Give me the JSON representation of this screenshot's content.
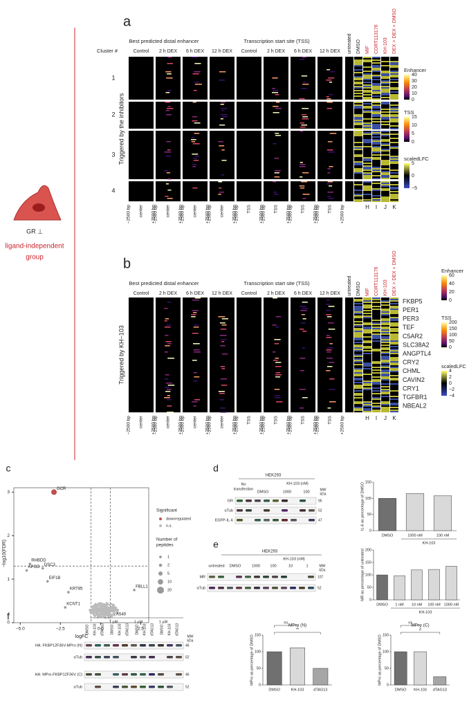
{
  "panel_a": {
    "label": "a",
    "cluster_header": "Cluster #",
    "group_headers": [
      "Best predicted distal enhancer",
      "Transcription start site (TSS)"
    ],
    "columns": [
      "Control",
      "2 h DEX",
      "6 h DEX",
      "12 h DEX",
      "Control",
      "2 h DEX",
      "6 h DEX",
      "12 h DEX"
    ],
    "side_columns": [
      "untreated",
      "DMSO",
      "MIF",
      "CORT113176",
      "KH-103",
      "DEX > DEX + DMSO"
    ],
    "side_letters": [
      "H",
      "I",
      "J",
      "K"
    ],
    "clusters": [
      "1",
      "2",
      "3",
      "4"
    ],
    "row_label": "Triggered by the inhibitors",
    "enhancer_ticks": [
      "−2500 bp",
      "center",
      "+2500 bp"
    ],
    "tss_ticks": [
      "−2500 bp",
      "TSS",
      "+2500 bp"
    ],
    "legends": [
      {
        "title": "Enhancer",
        "ticks": [
          "40",
          "30",
          "20",
          "10",
          "0"
        ]
      },
      {
        "title": "TSS",
        "ticks": [
          "15",
          "10",
          "5",
          "0"
        ]
      },
      {
        "title": "scaledLFC",
        "ticks": [
          "5",
          "0",
          "−5"
        ]
      }
    ]
  },
  "panel_b": {
    "label": "b",
    "group_headers": [
      "Best predicted distal enhancer",
      "Transcription start site (TSS)"
    ],
    "columns": [
      "Control",
      "2 h DEX",
      "6 h DEX",
      "12 h DEX",
      "Control",
      "2 h DEX",
      "6 h DEX",
      "12 h DEX"
    ],
    "side_columns": [
      "untreated",
      "DMSO",
      "MIF",
      "CORT113176",
      "KH-103",
      "DEX > DEX + DMSO"
    ],
    "side_letters": [
      "H",
      "I",
      "J",
      "K"
    ],
    "row_label": "Triggered by KH−103",
    "genes": [
      "FKBP5",
      "PER1",
      "PER3",
      "TEF",
      "C5AR2",
      "SLC38A2",
      "ANGPTL4",
      "CRY2",
      "CHML",
      "CAVIN2",
      "CRY1",
      "TGFBR1",
      "NBEAL2"
    ],
    "enhancer_ticks": [
      "−2500 bp",
      "center",
      "+2500 bp"
    ],
    "tss_ticks": [
      "−2500 bp",
      "TSS",
      "+2500 bp"
    ],
    "legends": [
      {
        "title": "Enhancer",
        "ticks": [
          "60",
          "40",
          "20",
          "0"
        ]
      },
      {
        "title": "TSS",
        "ticks": [
          "200",
          "150",
          "100",
          "50",
          "0"
        ]
      },
      {
        "title": "scaledLFC",
        "ticks": [
          "4",
          "2",
          "0",
          "−2",
          "−4"
        ]
      }
    ]
  },
  "side": {
    "receptor": "GR ⊥",
    "group": [
      "ligand-independent",
      "group"
    ]
  },
  "panel_c": {
    "label": "c",
    "xlabel": "logFC",
    "ylabel": "−log10(FDR)",
    "xlim": [
      -5.4,
      3
    ],
    "ylim": [
      0,
      3.1
    ],
    "xticks": [
      {
        "value": -5,
        "label": "−5.0"
      },
      {
        "value": -2.5,
        "label": "−2.5"
      },
      {
        "value": 0,
        "label": "0.0"
      },
      {
        "value": 2.5,
        "label": "2.5"
      }
    ],
    "yticks": [
      0,
      1,
      2,
      3
    ],
    "vlines": [
      -0.6,
      0.6
    ],
    "hline": 1.3,
    "points": [
      {
        "label": "GCR",
        "x": -2.9,
        "y": 3.0
      },
      {
        "label": "RHBDD",
        "x": -4.4,
        "y": 1.35
      },
      {
        "label": "APOD",
        "x": -4.6,
        "y": 1.2
      },
      {
        "label": "DSC3",
        "x": -3.6,
        "y": 1.25
      },
      {
        "label": "EIF1B",
        "x": -3.3,
        "y": 0.95
      },
      {
        "label": "KRT85",
        "x": -2.0,
        "y": 0.7
      },
      {
        "label": "KCNT1",
        "x": -2.2,
        "y": 0.35
      },
      {
        "label": "FBLL1",
        "x": 2.1,
        "y": 0.75
      }
    ],
    "legend_title": "Significant",
    "legend_items": [
      "downregulated",
      "n.s."
    ],
    "size_title": [
      "Number of",
      "peptides"
    ],
    "sizes": [
      1,
      2,
      5,
      10,
      20
    ]
  },
  "panel_d": {
    "label": "d",
    "blot": {
      "cell": "HEK293",
      "treat": "KH-103  (nM)",
      "lanes": [
        "No",
        "transfection",
        "DMSO",
        "1000",
        "100"
      ],
      "mw": "MW",
      "kda": "kDa",
      "rows": [
        "GR",
        "αTub",
        "EGFP-IL-6"
      ],
      "mws": [
        "95",
        "52",
        "47"
      ]
    },
    "chart": {
      "ylabel": "IL-6 as percentage of DMSO",
      "categories": [
        "DMSO",
        "1000 nM",
        "100 nM"
      ],
      "values": [
        100,
        115,
        108
      ],
      "colors": [
        "#707070",
        "#d9d9d9",
        "#d9d9d9"
      ],
      "ylim": [
        0,
        150
      ],
      "yticks": [
        0,
        50,
        100,
        150
      ],
      "group": "KH-103"
    }
  },
  "panel_e": {
    "label": "e",
    "blot": {
      "cell": "HEK293",
      "treat": "KH-103  (nM)",
      "lanes": [
        "untreated",
        "DMSO",
        "1000",
        "100",
        "10",
        "1"
      ],
      "mw": "MW",
      "kda": "kDa",
      "rows": [
        "MR",
        "αTub"
      ],
      "mws": [
        "107",
        "52"
      ]
    },
    "chart": {
      "ylabel": "MR as percentage of untreated",
      "categories": [
        "DMSO",
        "1 nM",
        "10 nM",
        "100 nM",
        "1000 nM"
      ],
      "values": [
        100,
        97,
        120,
        122,
        135
      ],
      "colors": [
        "#707070",
        "#d9d9d9",
        "#d9d9d9",
        "#d9d9d9",
        "#d9d9d9"
      ],
      "ylim": [
        0,
        200
      ],
      "yticks": [
        0,
        50,
        100,
        150,
        200
      ],
      "group": "KH-103"
    }
  },
  "panel_f": {
    "label": "f",
    "blot": {
      "cell": "A549",
      "dose": "1 µM",
      "lanes": [
        "DMSO",
        "KH-103",
        "dTAG13"
      ],
      "mw": "MW",
      "kda": "kDa",
      "rows": [
        "HA: FKBP12F36V-MPro (N)",
        "αTub",
        "HA: MPro-FKBP12F36V (C)",
        "αTub"
      ],
      "mws": [
        "46",
        "52",
        "46",
        "52"
      ]
    },
    "charts": [
      {
        "title": "MPro (N)",
        "ylabel": "MPro as percentage of DMSO",
        "categories": [
          "DMSO",
          "KH-103",
          "dTAG13"
        ],
        "values": [
          100,
          112,
          50
        ],
        "colors": [
          "#707070",
          "#d9d9d9",
          "#a6a6a6"
        ],
        "ylim": [
          0,
          150
        ],
        "yticks": [
          0,
          50,
          100,
          150
        ],
        "annotations": [
          "ns",
          "**"
        ]
      },
      {
        "title": "MPro (C)",
        "ylabel": "MPro as percentage of DMSO",
        "categories": [
          "DMSO",
          "KH-103",
          "dTAG13"
        ],
        "values": [
          100,
          100,
          25
        ],
        "colors": [
          "#707070",
          "#d9d9d9",
          "#a6a6a6"
        ],
        "ylim": [
          0,
          150
        ],
        "yticks": [
          0,
          50,
          100,
          150
        ],
        "annotations": [
          "ns",
          "#"
        ]
      }
    ]
  }
}
